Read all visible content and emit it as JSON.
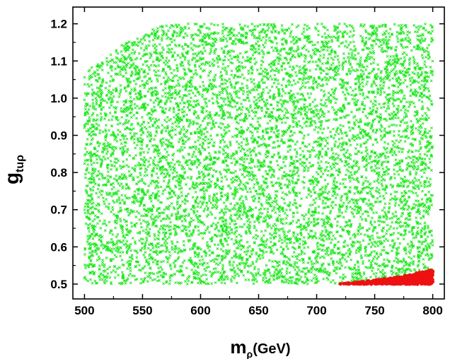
{
  "chart_data": {
    "type": "scatter",
    "title": "",
    "xlabel_main": "m",
    "xlabel_sub": "ρ",
    "xlabel_tail": "(GeV)",
    "ylabel_main": "g",
    "ylabel_sub": "tuρ",
    "xlim": [
      490,
      810
    ],
    "ylim": [
      0.46,
      1.245
    ],
    "x_ticks": [
      500,
      550,
      600,
      650,
      700,
      750,
      800
    ],
    "x_tick_labels": [
      "500",
      "550",
      "600",
      "650",
      "700",
      "750",
      "800"
    ],
    "y_ticks": [
      0.5,
      0.6,
      0.7,
      0.8,
      0.9,
      1.0,
      1.1,
      1.2
    ],
    "y_tick_labels": [
      "0.5",
      "0.6",
      "0.7",
      "0.8",
      "0.9",
      "1.0",
      "1.1",
      "1.2"
    ],
    "grid": false,
    "legend": "none",
    "series": [
      {
        "marker": "x",
        "color": "#19e619",
        "region": {
          "x_range": [
            500,
            800
          ],
          "y_range": [
            0.5,
            1.2
          ],
          "upper_boundary": [
            [
              500,
              1.07
            ],
            [
              510,
              1.09
            ],
            [
              520,
              1.11
            ],
            [
              530,
              1.14
            ],
            [
              540,
              1.16
            ],
            [
              550,
              1.17
            ],
            [
              560,
              1.19
            ],
            [
              575,
              1.2
            ],
            [
              800,
              1.2
            ]
          ]
        },
        "approx_count": 14000
      },
      {
        "marker": "circle",
        "color": "#ee1111",
        "region": {
          "x_range": [
            718,
            800
          ],
          "y_range": [
            0.5,
            0.54
          ],
          "upper_boundary": [
            [
              718,
              0.5
            ],
            [
              740,
              0.507
            ],
            [
              760,
              0.515
            ],
            [
              780,
              0.525
            ],
            [
              800,
              0.54
            ]
          ]
        },
        "approx_count": 420
      }
    ]
  }
}
